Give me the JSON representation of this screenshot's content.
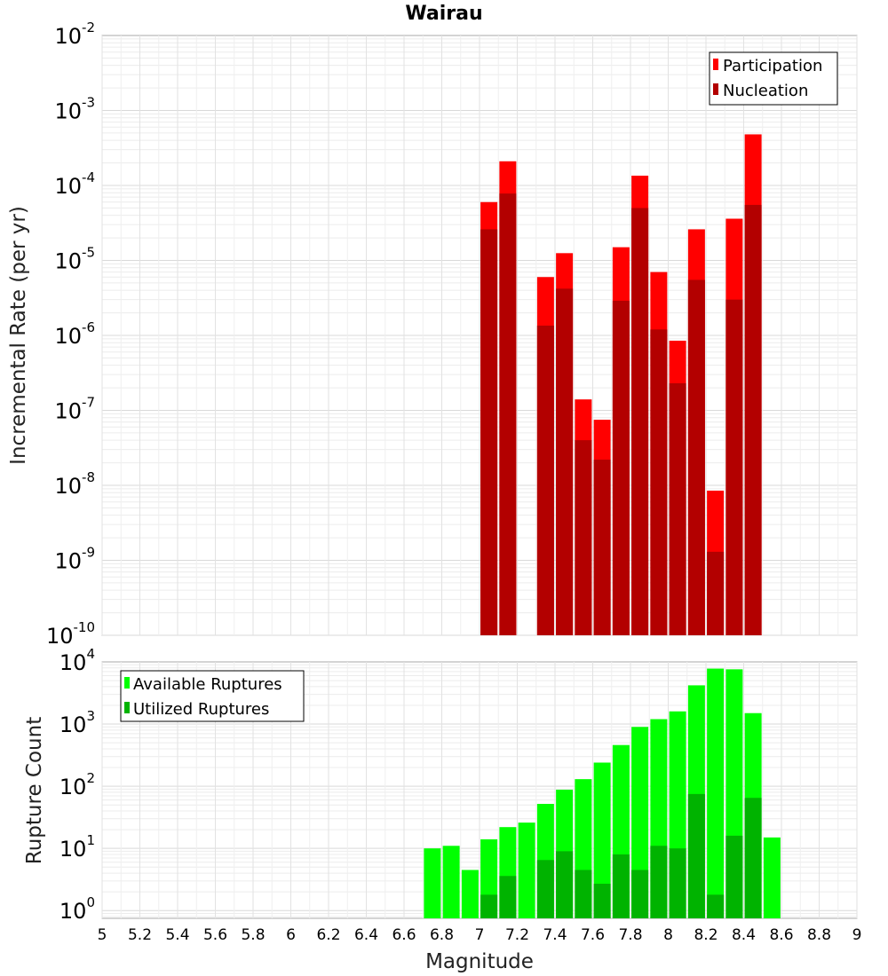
{
  "chart_data": [
    {
      "type": "bar",
      "title": "Wairau",
      "xlabel": "",
      "ylabel": "Incremental Rate (per yr)",
      "y_scale": "log",
      "xlim": [
        5,
        9
      ],
      "ylim": [
        1e-10,
        0.01
      ],
      "grid": true,
      "legend_position": "top-right",
      "ytick_mantissa": "10",
      "ytick_exponents": [
        "-10",
        "-9",
        "-8",
        "-7",
        "-6",
        "-5",
        "-4",
        "-3",
        "-2"
      ],
      "x": [
        7.05,
        7.15,
        7.35,
        7.45,
        7.55,
        7.65,
        7.75,
        7.85,
        7.95,
        8.05,
        8.15,
        8.25,
        8.35,
        8.45
      ],
      "series": [
        {
          "name": "Participation",
          "color": "#ff0000",
          "values": [
            6e-05,
            0.00021,
            6e-06,
            1.25e-05,
            1.4e-07,
            7.5e-08,
            1.5e-05,
            0.000135,
            7e-06,
            8.5e-07,
            2.6e-05,
            8.5e-09,
            3.6e-05,
            0.00048
          ]
        },
        {
          "name": "Nucleation",
          "color": "#b30000",
          "values": [
            2.6e-05,
            7.8e-05,
            1.35e-06,
            4.2e-06,
            4e-08,
            2.2e-08,
            2.9e-06,
            5e-05,
            1.2e-06,
            2.3e-07,
            5.5e-06,
            1.3e-09,
            3e-06,
            5.5e-05
          ]
        }
      ]
    },
    {
      "type": "bar",
      "title": "",
      "xlabel": "Magnitude",
      "ylabel": "Rupture Count",
      "y_scale": "log",
      "xlim": [
        5,
        9
      ],
      "ylim": [
        0.75,
        10000
      ],
      "grid": true,
      "legend_position": "top-left",
      "xtick_labels": [
        "5",
        "5.2",
        "5.4",
        "5.6",
        "5.8",
        "6",
        "6.2",
        "6.4",
        "6.6",
        "6.8",
        "7",
        "7.2",
        "7.4",
        "7.6",
        "7.8",
        "8",
        "8.2",
        "8.4",
        "8.6",
        "8.8",
        "9"
      ],
      "ytick_mantissa": "10",
      "ytick_exponents": [
        "0",
        "1",
        "2",
        "3",
        "4"
      ],
      "x": [
        6.75,
        6.85,
        6.95,
        7.05,
        7.15,
        7.25,
        7.35,
        7.45,
        7.55,
        7.65,
        7.75,
        7.85,
        7.95,
        8.05,
        8.15,
        8.25,
        8.35,
        8.45,
        8.55
      ],
      "series": [
        {
          "name": "Available Ruptures",
          "color": "#00ff00",
          "values": [
            10,
            11,
            4.5,
            14,
            22,
            26,
            52,
            88,
            130,
            240,
            460,
            900,
            1200,
            1600,
            4200,
            7800,
            7600,
            1500,
            15
          ]
        },
        {
          "name": "Utilized Ruptures",
          "color": "#00b300",
          "values": [
            null,
            null,
            null,
            1.8,
            3.6,
            null,
            6.5,
            9,
            4.5,
            2.7,
            8,
            4.5,
            11,
            10,
            75,
            1.8,
            16,
            65,
            null
          ]
        }
      ]
    }
  ]
}
